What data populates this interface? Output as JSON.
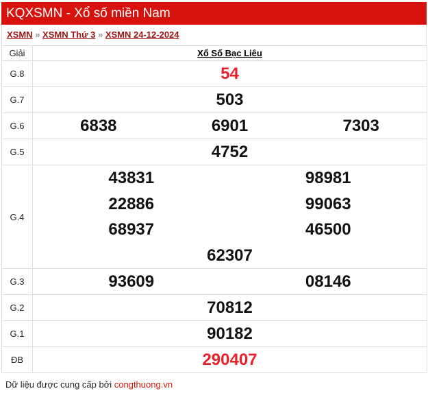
{
  "header": {
    "title": "KQXSMN - Xổ số miền Nam"
  },
  "breadcrumb": {
    "items": [
      "XSMN",
      "XSMN Thứ 3",
      "XSMN 24-12-2024"
    ],
    "sep": "»"
  },
  "table": {
    "col_prize": "Giải",
    "col_station": "Xổ Số Bạc Liêu",
    "rows": [
      {
        "label": "G.8",
        "numbers": [
          "54"
        ]
      },
      {
        "label": "G.7",
        "numbers": [
          "503"
        ]
      },
      {
        "label": "G.6",
        "numbers": [
          "6838",
          "6901",
          "7303"
        ]
      },
      {
        "label": "G.5",
        "numbers": [
          "4752"
        ]
      },
      {
        "label": "G.4",
        "numbers": [
          "43831",
          "98981",
          "22886",
          "99063",
          "68937",
          "46500",
          "62307"
        ]
      },
      {
        "label": "G.3",
        "numbers": [
          "93609",
          "08146"
        ]
      },
      {
        "label": "G.2",
        "numbers": [
          "70812"
        ]
      },
      {
        "label": "G.1",
        "numbers": [
          "90182"
        ]
      },
      {
        "label": "ĐB",
        "numbers": [
          "290407"
        ]
      }
    ]
  },
  "footer": {
    "text": "Dữ liệu được cung cấp bởi ",
    "link": "congthuong.vn"
  },
  "colors": {
    "header_bg": "#d8120c",
    "highlight": "#e8202a",
    "link": "#9b1414"
  }
}
